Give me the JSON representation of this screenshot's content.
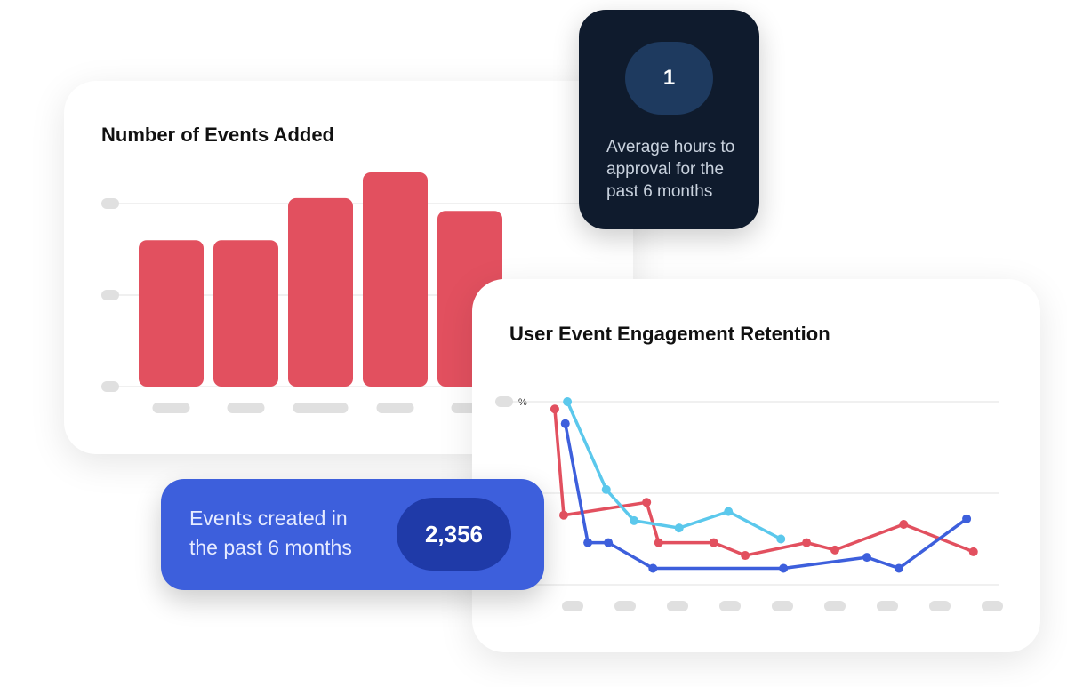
{
  "bar_card": {
    "title": "Number of Events Added"
  },
  "line_card": {
    "title": "User Event Engagement Retention",
    "y_unit": "%"
  },
  "hours_card": {
    "value": "1",
    "label": "Average hours to approval for the past 6 months"
  },
  "events_card": {
    "label": "Events created in the past 6 months",
    "value": "2,356"
  },
  "colors": {
    "bar": "#e2505f",
    "red": "#e2505f",
    "cyan": "#5bc8ec",
    "blue": "#3d5fdc",
    "dark": "#0f1b2d"
  },
  "chart_data": [
    {
      "type": "bar",
      "title": "Number of Events Added",
      "categories": [
        "",
        "",
        "",
        "",
        ""
      ],
      "values": [
        80,
        80,
        103,
        117,
        96
      ],
      "ylim": [
        0,
        120
      ],
      "yticks": [
        0,
        50,
        100
      ],
      "grid": true
    },
    {
      "type": "line",
      "title": "User Event Engagement Retention",
      "ylabel": "%",
      "xlim": [
        -0.6,
        8.2
      ],
      "ylim": [
        0,
        100
      ],
      "yticks": [
        0,
        50,
        100
      ],
      "xticks": [
        0,
        1,
        2,
        3,
        4,
        5,
        6,
        7,
        8
      ],
      "grid": true,
      "series": [
        {
          "color": "#e2505f",
          "points": [
            [
              -0.34,
              96
            ],
            [
              -0.17,
              38
            ],
            [
              1.41,
              45
            ],
            [
              1.64,
              23
            ],
            [
              2.69,
              23
            ],
            [
              3.29,
              16
            ],
            [
              4.46,
              23
            ],
            [
              5.0,
              19
            ],
            [
              6.31,
              33
            ],
            [
              7.64,
              18
            ]
          ]
        },
        {
          "color": "#5bc8ec",
          "points": [
            [
              -0.1,
              100
            ],
            [
              0.64,
              52
            ],
            [
              1.17,
              35
            ],
            [
              2.03,
              31
            ],
            [
              2.97,
              40
            ],
            [
              3.97,
              25
            ]
          ]
        },
        {
          "color": "#3d5fdc",
          "points": [
            [
              -0.14,
              88
            ],
            [
              0.29,
              23
            ],
            [
              0.68,
              23
            ],
            [
              1.53,
              9
            ],
            [
              4.02,
              9
            ],
            [
              5.61,
              15
            ],
            [
              6.22,
              9
            ],
            [
              7.51,
              36
            ]
          ]
        }
      ]
    }
  ]
}
